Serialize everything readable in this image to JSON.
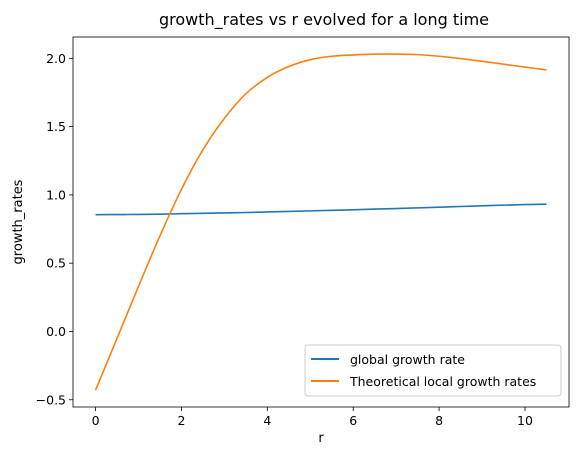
{
  "chart_data": {
    "type": "line",
    "title": "growth_rates vs r evolved for a long time",
    "xlabel": "r",
    "ylabel": "growth_rates",
    "xlim": [
      -0.525,
      11.025
    ],
    "ylim": [
      -0.553,
      2.156
    ],
    "xticks": [
      0,
      2,
      4,
      6,
      8,
      10
    ],
    "yticks": [
      -0.5,
      0.0,
      0.5,
      1.0,
      1.5,
      2.0
    ],
    "xtick_labels": [
      "0",
      "2",
      "4",
      "6",
      "8",
      "10"
    ],
    "ytick_labels": [
      "−0.5",
      "0.0",
      "0.5",
      "1.0",
      "1.5",
      "2.0"
    ],
    "grid": false,
    "legend_position": "lower-right",
    "series": [
      {
        "name": "global growth rate",
        "color": "#1f77b4",
        "x": [
          0,
          0.5,
          1,
          1.5,
          2,
          2.5,
          3,
          3.5,
          4,
          4.5,
          5,
          5.5,
          6,
          6.5,
          7,
          7.5,
          8,
          8.5,
          9,
          9.5,
          10,
          10.5
        ],
        "y": [
          0.855,
          0.856,
          0.857,
          0.859,
          0.862,
          0.865,
          0.868,
          0.871,
          0.875,
          0.879,
          0.883,
          0.887,
          0.891,
          0.896,
          0.9,
          0.905,
          0.91,
          0.915,
          0.92,
          0.925,
          0.929,
          0.932
        ]
      },
      {
        "name": "Theoretical local growth rates",
        "color": "#ff7f0e",
        "x": [
          0,
          0.5,
          1,
          1.5,
          2,
          2.5,
          3,
          3.5,
          4,
          4.5,
          5,
          5.5,
          6,
          6.5,
          7,
          7.5,
          8,
          8.5,
          9,
          9.5,
          10,
          10.5
        ],
        "y": [
          -0.43,
          -0.05,
          0.33,
          0.7,
          1.04,
          1.33,
          1.56,
          1.74,
          1.86,
          1.94,
          1.99,
          2.015,
          2.025,
          2.03,
          2.031,
          2.027,
          2.015,
          1.998,
          1.978,
          1.957,
          1.936,
          1.915
        ]
      }
    ]
  }
}
